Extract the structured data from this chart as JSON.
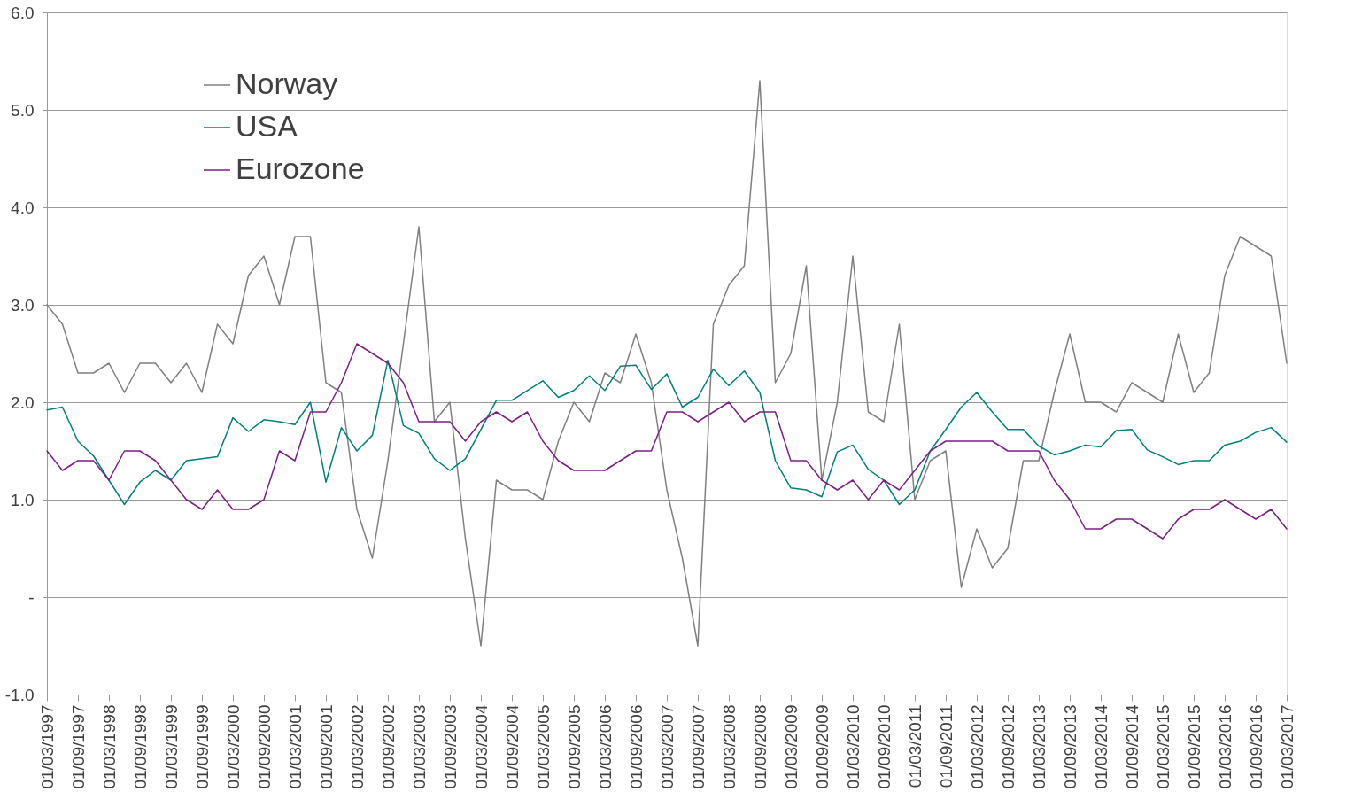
{
  "chart_data": {
    "type": "line",
    "categories": [
      "01/03/1997",
      null,
      "01/09/1997",
      null,
      "01/03/1998",
      null,
      "01/09/1998",
      null,
      "01/03/1999",
      null,
      "01/09/1999",
      null,
      "01/03/2000",
      null,
      "01/09/2000",
      null,
      "01/03/2001",
      null,
      "01/09/2001",
      null,
      "01/03/2002",
      null,
      "01/09/2002",
      null,
      "01/03/2003",
      null,
      "01/09/2003",
      null,
      "01/03/2004",
      null,
      "01/09/2004",
      null,
      "01/03/2005",
      null,
      "01/09/2005",
      null,
      "01/03/2006",
      null,
      "01/09/2006",
      null,
      "01/03/2007",
      null,
      "01/09/2007",
      null,
      "01/03/2008",
      null,
      "01/09/2008",
      null,
      "01/03/2009",
      null,
      "01/09/2009",
      null,
      "01/03/2010",
      null,
      "01/09/2010",
      null,
      "01/03/2011",
      null,
      "01/09/2011",
      null,
      "01/03/2012",
      null,
      "01/09/2012",
      null,
      "01/03/2013",
      null,
      "01/09/2013",
      null,
      "01/03/2014",
      null,
      "01/09/2014",
      null,
      "01/03/2015",
      null,
      "01/09/2015",
      null,
      "01/03/2016",
      null,
      "01/09/2016",
      null,
      "01/03/2017"
    ],
    "series": [
      {
        "name": "Norway",
        "color": "#808080",
        "values": [
          3.0,
          2.8,
          2.3,
          2.3,
          2.4,
          2.1,
          2.4,
          2.4,
          2.2,
          2.4,
          2.1,
          2.8,
          2.6,
          3.3,
          3.5,
          3.0,
          3.7,
          3.7,
          2.2,
          2.1,
          0.9,
          0.4,
          1.4,
          2.6,
          3.8,
          1.8,
          2.0,
          0.6,
          -0.5,
          1.2,
          1.1,
          1.1,
          1.0,
          1.6,
          2.0,
          1.8,
          2.3,
          2.2,
          2.7,
          2.2,
          1.1,
          0.4,
          -0.5,
          2.8,
          3.2,
          3.4,
          5.3,
          2.2,
          2.5,
          3.4,
          1.2,
          2.0,
          3.5,
          1.9,
          1.8,
          2.8,
          1.0,
          1.4,
          1.5,
          0.1,
          0.7,
          0.3,
          0.5,
          1.4,
          1.4,
          2.1,
          2.7,
          2.0,
          2.0,
          1.9,
          2.2,
          2.1,
          2.0,
          2.7,
          2.1,
          2.3,
          3.3,
          3.7,
          3.6,
          3.5,
          2.4
        ]
      },
      {
        "name": "USA",
        "color": "#00807a",
        "values": [
          1.92,
          1.95,
          1.6,
          1.45,
          1.2,
          0.95,
          1.18,
          1.3,
          1.2,
          1.4,
          1.42,
          1.44,
          1.84,
          1.7,
          1.82,
          1.8,
          1.77,
          2.0,
          1.18,
          1.74,
          1.5,
          1.66,
          2.43,
          1.76,
          1.68,
          1.42,
          1.3,
          1.42,
          1.72,
          2.02,
          2.02,
          2.12,
          2.22,
          2.05,
          2.12,
          2.27,
          2.12,
          2.37,
          2.38,
          2.13,
          2.29,
          1.95,
          2.05,
          2.34,
          2.17,
          2.32,
          2.1,
          1.4,
          1.12,
          1.1,
          1.03,
          1.49,
          1.56,
          1.31,
          1.2,
          0.95,
          1.1,
          1.5,
          1.72,
          1.95,
          2.1,
          1.9,
          1.72,
          1.72,
          1.55,
          1.46,
          1.5,
          1.56,
          1.54,
          1.71,
          1.72,
          1.51,
          1.44,
          1.36,
          1.4,
          1.4,
          1.56,
          1.6,
          1.69,
          1.74,
          1.59
        ]
      },
      {
        "name": "Eurozone",
        "color": "#7b1f87",
        "values": [
          1.5,
          1.3,
          1.4,
          1.4,
          1.2,
          1.5,
          1.5,
          1.4,
          1.2,
          1.0,
          0.9,
          1.1,
          0.9,
          0.9,
          1.0,
          1.5,
          1.4,
          1.9,
          1.9,
          2.2,
          2.6,
          2.5,
          2.4,
          2.2,
          1.8,
          1.8,
          1.8,
          1.6,
          1.8,
          1.9,
          1.8,
          1.9,
          1.6,
          1.4,
          1.3,
          1.3,
          1.3,
          1.4,
          1.5,
          1.5,
          1.9,
          1.9,
          1.8,
          1.9,
          2.0,
          1.8,
          1.9,
          1.9,
          1.4,
          1.4,
          1.2,
          1.1,
          1.2,
          1.0,
          1.2,
          1.1,
          1.3,
          1.5,
          1.6,
          1.6,
          1.6,
          1.6,
          1.5,
          1.5,
          1.5,
          1.2,
          1.0,
          0.7,
          0.7,
          0.8,
          0.8,
          0.7,
          0.6,
          0.8,
          0.9,
          0.9,
          1.0,
          0.9,
          0.8,
          0.9,
          0.7
        ]
      }
    ],
    "ylim": [
      -1.0,
      6.0
    ],
    "yticks": [
      {
        "value": -1,
        "label": "-1.0"
      },
      {
        "value": 0,
        "label": "-"
      },
      {
        "value": 1,
        "label": "1.0"
      },
      {
        "value": 2,
        "label": "2.0"
      },
      {
        "value": 3,
        "label": "3.0"
      },
      {
        "value": 4,
        "label": "4.0"
      },
      {
        "value": 5,
        "label": "5.0"
      },
      {
        "value": 6,
        "label": "6.0"
      }
    ],
    "grid": "y",
    "legend": "top left",
    "line_style": "solid",
    "marker": "none"
  }
}
